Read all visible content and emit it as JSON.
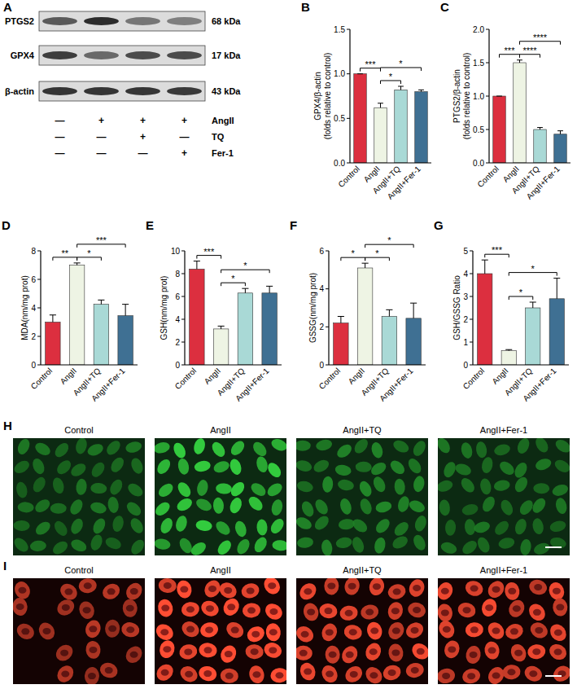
{
  "blot": {
    "panel": "A",
    "bands": [
      {
        "protein": "PTGS2",
        "size": "68 kDa"
      },
      {
        "protein": "GPX4",
        "size": "17 kDa"
      },
      {
        "protein": "β-actin",
        "size": "43 kDa"
      }
    ],
    "treatments": [
      {
        "name": "AngII",
        "lanes": [
          "—",
          "+",
          "+",
          "+"
        ]
      },
      {
        "name": "TQ",
        "lanes": [
          "—",
          "—",
          "+",
          "—"
        ]
      },
      {
        "name": "Fer-1",
        "lanes": [
          "—",
          "—",
          "—",
          "+"
        ]
      }
    ]
  },
  "chart_data": [
    {
      "type": "bar",
      "panel": "B",
      "y_label": "GPX4/β-actin (folds relative to control)",
      "categories": [
        "Control",
        "AngII",
        "AngII+TQ",
        "AngII+Fer-1"
      ],
      "values": [
        1.0,
        0.62,
        0.82,
        0.8
      ],
      "errors": [
        0,
        0.05,
        0.04,
        0.02
      ],
      "colors": [
        "#dc2f3f",
        "#eef4e4",
        "#a9d9d6",
        "#3f7093"
      ],
      "ylim": [
        0,
        1.5
      ],
      "yticks": [
        {
          "value": 0,
          "label": "0.0"
        },
        0.5,
        {
          "value": 1,
          "label": "1.0"
        },
        1.5
      ],
      "comparisons": [
        {
          "between": [
            0,
            1
          ],
          "label": "***"
        },
        {
          "between": [
            1,
            2
          ],
          "label": "*"
        },
        {
          "between": [
            1,
            3
          ],
          "label": "*"
        }
      ]
    },
    {
      "type": "bar",
      "panel": "C",
      "y_label": "PTGS2/β-actin (folds relative to control)",
      "categories": [
        "Control",
        "AngII",
        "AngII+TQ",
        "AngII+Fer-1"
      ],
      "values": [
        1.0,
        1.5,
        0.5,
        0.43
      ],
      "errors": [
        0,
        0.04,
        0.03,
        0.05
      ],
      "colors": [
        "#dc2f3f",
        "#eef4e4",
        "#a9d9d6",
        "#3f7093"
      ],
      "ylim": [
        0,
        2
      ],
      "yticks": [
        {
          "value": 0,
          "label": "0.0"
        },
        0.5,
        {
          "value": 1,
          "label": "1.0"
        },
        1.5,
        {
          "value": 2,
          "label": "2.0"
        }
      ],
      "comparisons": [
        {
          "between": [
            0,
            1
          ],
          "label": "***"
        },
        {
          "between": [
            1,
            2
          ],
          "label": "****"
        },
        {
          "between": [
            1,
            3
          ],
          "label": "****"
        }
      ]
    },
    {
      "type": "bar",
      "panel": "D",
      "y_label": "MDA(nm/mg prot)",
      "categories": [
        "Control",
        "AngII",
        "AngII+TQ",
        "AngII+Fer-1"
      ],
      "values": [
        3.0,
        7.0,
        4.25,
        3.45
      ],
      "errors": [
        0.5,
        0.15,
        0.3,
        0.8
      ],
      "colors": [
        "#dc2f3f",
        "#eef4e4",
        "#a9d9d6",
        "#3f7093"
      ],
      "ylim": [
        0,
        8
      ],
      "yticks": [
        0,
        2,
        4,
        6,
        8
      ],
      "comparisons": [
        {
          "between": [
            0,
            1
          ],
          "label": "**"
        },
        {
          "between": [
            1,
            2
          ],
          "label": "*"
        },
        {
          "between": [
            1,
            3
          ],
          "label": "***"
        }
      ]
    },
    {
      "type": "bar",
      "panel": "E",
      "y_label": "GSH(nm/mg prot)",
      "categories": [
        "Control",
        "AngII",
        "AngII+TQ",
        "AngII+Fer-1"
      ],
      "values": [
        8.4,
        3.15,
        6.3,
        6.3
      ],
      "errors": [
        0.7,
        0.25,
        0.4,
        0.6
      ],
      "colors": [
        "#dc2f3f",
        "#eef4e4",
        "#a9d9d6",
        "#3f7093"
      ],
      "ylim": [
        0,
        10
      ],
      "yticks": [
        0,
        2,
        4,
        6,
        8,
        10
      ],
      "comparisons": [
        {
          "between": [
            0,
            1
          ],
          "label": "***"
        },
        {
          "between": [
            1,
            2
          ],
          "label": "*"
        },
        {
          "between": [
            1,
            3
          ],
          "label": "*"
        }
      ]
    },
    {
      "type": "bar",
      "panel": "F",
      "y_label": "GSSG(nm/mg prot)",
      "categories": [
        "Control",
        "AngII",
        "AngII+TQ",
        "AngII+Fer-1"
      ],
      "values": [
        2.2,
        5.1,
        2.55,
        2.45
      ],
      "errors": [
        0.35,
        0.25,
        0.35,
        0.8
      ],
      "colors": [
        "#dc2f3f",
        "#eef4e4",
        "#a9d9d6",
        "#3f7093"
      ],
      "ylim": [
        0,
        6
      ],
      "yticks": [
        0,
        2,
        4,
        6
      ],
      "comparisons": [
        {
          "between": [
            0,
            1
          ],
          "label": "*"
        },
        {
          "between": [
            1,
            2
          ],
          "label": "*"
        },
        {
          "between": [
            1,
            3
          ],
          "label": "*"
        }
      ]
    },
    {
      "type": "bar",
      "panel": "G",
      "y_label": "GSH/GSSG Ratio",
      "categories": [
        "Control",
        "AngII",
        "AngII+TQ",
        "AngII+Fer-1"
      ],
      "values": [
        4.0,
        0.62,
        2.5,
        2.9
      ],
      "errors": [
        0.6,
        0.05,
        0.25,
        0.9
      ],
      "colors": [
        "#dc2f3f",
        "#eef4e4",
        "#a9d9d6",
        "#3f7093"
      ],
      "ylim": [
        0,
        5
      ],
      "yticks": [
        0,
        1,
        2,
        3,
        4,
        5
      ],
      "comparisons": [
        {
          "between": [
            0,
            1
          ],
          "label": "***"
        },
        {
          "between": [
            1,
            2
          ],
          "label": "*"
        },
        {
          "between": [
            1,
            3
          ],
          "label": "*"
        }
      ]
    }
  ],
  "micrographs": [
    {
      "panel": "H",
      "labels": [
        "Control",
        "AngII",
        "AngII+TQ",
        "AngII+Fer-1"
      ]
    },
    {
      "panel": "I",
      "labels": [
        "Control",
        "AngII",
        "AngII+TQ",
        "AngII+Fer-1"
      ]
    }
  ]
}
